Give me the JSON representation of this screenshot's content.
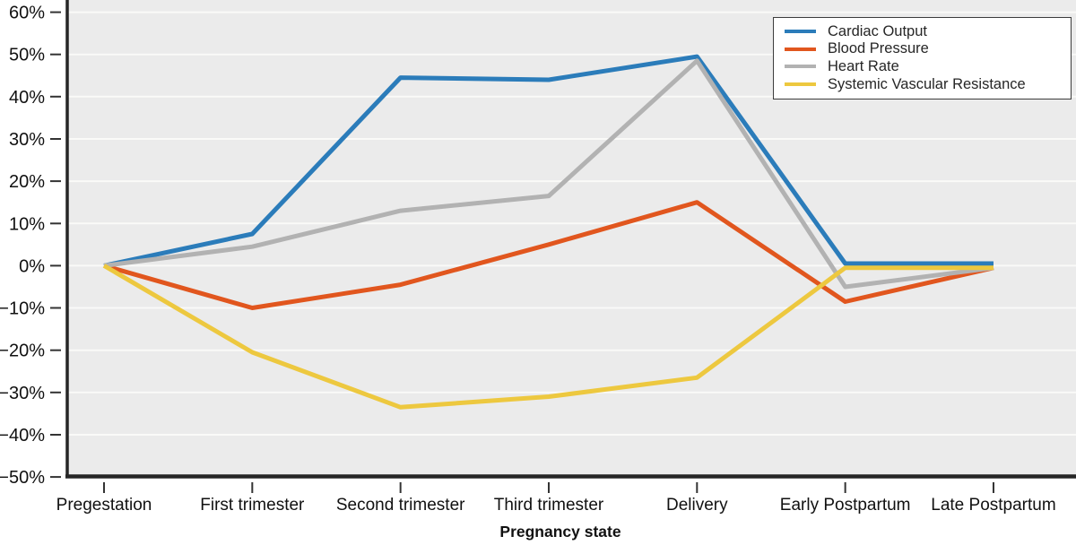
{
  "chart_data": {
    "type": "line",
    "title": "",
    "xlabel": "Pregnancy state",
    "ylabel": "",
    "x_categories": [
      "Pregestation",
      "First trimester",
      "Second trimester",
      "Third trimester",
      "Delivery",
      "Early Postpartum",
      "Late Postpartum"
    ],
    "y_tick_labels": [
      "60%",
      "50%",
      "40%",
      "30%",
      "20%",
      "10%",
      "0%",
      "−10%",
      "−20%",
      "−30%",
      "−40%",
      "−50%"
    ],
    "y_tick_values": [
      60,
      50,
      40,
      30,
      20,
      10,
      0,
      -10,
      -20,
      -30,
      -40,
      -50
    ],
    "ylim": [
      -55,
      63
    ],
    "grid": true,
    "legend_position": "top-right",
    "series": [
      {
        "name": "Cardiac Output",
        "color": "#2b7cba",
        "values": [
          0,
          7.5,
          44.5,
          44,
          49.5,
          0.5,
          0.5
        ]
      },
      {
        "name": "Blood Pressure",
        "color": "#e1561e",
        "values": [
          0,
          -10,
          -4.5,
          5,
          15,
          -8.5,
          -0.5
        ]
      },
      {
        "name": "Heart Rate",
        "color": "#b2b2b2",
        "values": [
          0,
          4.5,
          13,
          16.5,
          48.5,
          -5,
          -0.5
        ]
      },
      {
        "name": "Systemic Vascular Resistance",
        "color": "#edc83f",
        "values": [
          0,
          -20.5,
          -33.5,
          -31,
          -26.5,
          -0.5,
          -0.5
        ]
      }
    ]
  },
  "colors": {
    "plot_bg": "#ebebeb",
    "grid": "#fafaf8",
    "axis": "#262626",
    "tick": "#333333",
    "text": "#111111",
    "legend_bg": "#ffffff",
    "legend_border": "#3c3c3c"
  }
}
